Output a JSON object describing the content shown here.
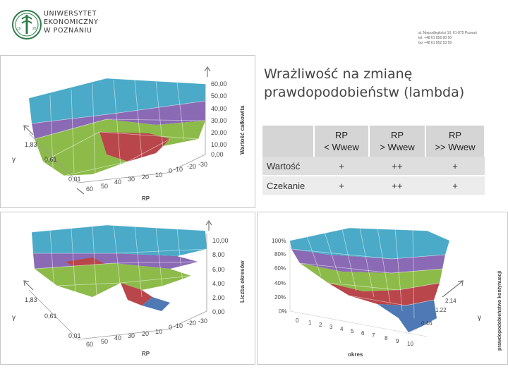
{
  "logo": {
    "lines": [
      "UNIWERSYTET",
      "EKONOMICZNY",
      "W POZNANIU"
    ],
    "emblem_years": [
      "19",
      "26"
    ]
  },
  "contact": {
    "lines": [
      "al. Niepodległości 10, 61-875 Poznań",
      "tel. +48 61 856 90 00",
      "fax +48 61 852 53 59"
    ]
  },
  "title": {
    "line1": "Wrażliwość na zmianę",
    "line2": "prawdopodobieństw (lambda)"
  },
  "table": {
    "headers": [
      {
        "line1": "",
        "line2": ""
      },
      {
        "line1": "RP",
        "line2": "< Wwew"
      },
      {
        "line1": "RP",
        "line2": "> Wwew"
      },
      {
        "line1": "RP",
        "line2": ">> Wwew"
      }
    ],
    "rows": [
      {
        "label": "Wartość",
        "cells": [
          "+",
          "++",
          "+"
        ]
      },
      {
        "label": "Czekanie",
        "cells": [
          "+",
          "++",
          "+"
        ]
      }
    ]
  },
  "colors": {
    "teal": "#4aaac8",
    "purple": "#8a6ab4",
    "green": "#8dbb4a",
    "red": "#b8464a",
    "blue": "#4f79b5",
    "logo_green": "#2e7d4a"
  },
  "chart1": {
    "z_ticks": [
      "60,00",
      "50,00",
      "40,00",
      "30,00",
      "20,00",
      "10,00",
      "0,00"
    ],
    "z_label": "Wartość całkowita",
    "x_ticks": [
      "60",
      "50",
      "40",
      "30",
      "20",
      "10",
      "0",
      "-10",
      "-20",
      "-30"
    ],
    "x_label": "RP",
    "y_ticks": [
      "1,83",
      "0,61",
      "0,01"
    ],
    "y_label": "γ"
  },
  "chart2": {
    "z_ticks": [
      "10,00",
      "8,00",
      "6,00",
      "4,00",
      "2,00",
      "0,00"
    ],
    "z_label": "Liczba okresów",
    "x_ticks": [
      "60",
      "50",
      "40",
      "30",
      "20",
      "10",
      "0",
      "-10",
      "-20",
      "-30"
    ],
    "x_label": "RP",
    "y_ticks": [
      "1,83",
      "0,61",
      "0,01"
    ],
    "y_label": "γ"
  },
  "chart3": {
    "z_ticks": [
      "100%",
      "80%",
      "60%",
      "40%",
      "20%",
      "0%"
    ],
    "z_label": "prawdopodobieństwo kontynuacji",
    "x_ticks": [
      "0",
      "1",
      "2",
      "3",
      "4",
      "5",
      "6",
      "7",
      "8",
      "9",
      "10"
    ],
    "x_label": "okres",
    "y_ticks": [
      "2,14",
      "1.22",
      "0.46"
    ],
    "y_label": "γ"
  }
}
